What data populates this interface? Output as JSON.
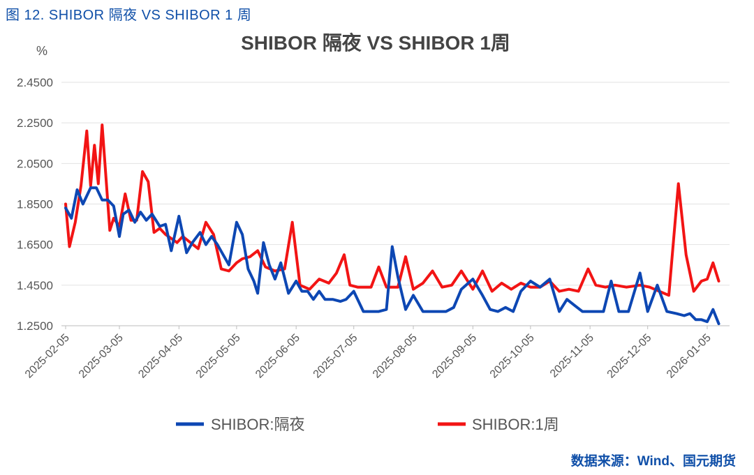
{
  "caption": "图 12. SHIBOR 隔夜 VS SHIBOR 1 周",
  "source": "数据来源：Wind、国元期货",
  "colors": {
    "overnight": "#0d47b3",
    "week": "#f21414",
    "grid": "#e2e2e2"
  },
  "chart_data": {
    "type": "line",
    "title": "SHIBOR 隔夜 VS SHIBOR 1周",
    "ylabel": "%",
    "xlabel": "",
    "ylim": [
      1.25,
      2.45
    ],
    "yticks": [
      "2.4500",
      "2.2500",
      "2.0500",
      "1.8500",
      "1.6500",
      "1.4500",
      "1.2500"
    ],
    "xticks": [
      "2025-02-05",
      "2025-03-05",
      "2025-04-05",
      "2025-05-05",
      "2025-06-05",
      "2025-07-05",
      "2025-08-05",
      "2025-09-05",
      "2025-10-05",
      "2025-11-05",
      "2025-12-05",
      "2026-01-05"
    ],
    "grid": true,
    "legend_position": "bottom",
    "series": [
      {
        "name": "SHIBOR:隔夜",
        "x": [
          "2025-02-05",
          "2025-02-08",
          "2025-02-11",
          "2025-02-14",
          "2025-02-18",
          "2025-02-21",
          "2025-02-24",
          "2025-02-27",
          "2025-03-02",
          "2025-03-05",
          "2025-03-07",
          "2025-03-10",
          "2025-03-13",
          "2025-03-16",
          "2025-03-19",
          "2025-03-22",
          "2025-03-26",
          "2025-03-29",
          "2025-04-01",
          "2025-04-05",
          "2025-04-09",
          "2025-04-12",
          "2025-04-16",
          "2025-04-19",
          "2025-04-22",
          "2025-04-25",
          "2025-04-28",
          "2025-05-01",
          "2025-05-05",
          "2025-05-08",
          "2025-05-11",
          "2025-05-14",
          "2025-05-16",
          "2025-05-19",
          "2025-05-22",
          "2025-05-25",
          "2025-05-28",
          "2025-06-01",
          "2025-06-05",
          "2025-06-08",
          "2025-06-11",
          "2025-06-14",
          "2025-06-17",
          "2025-06-20",
          "2025-06-24",
          "2025-06-28",
          "2025-07-01",
          "2025-07-05",
          "2025-07-10",
          "2025-07-14",
          "2025-07-18",
          "2025-07-22",
          "2025-07-25",
          "2025-07-28",
          "2025-08-01",
          "2025-08-05",
          "2025-08-10",
          "2025-08-15",
          "2025-08-19",
          "2025-08-22",
          "2025-08-26",
          "2025-08-30",
          "2025-09-05",
          "2025-09-10",
          "2025-09-14",
          "2025-09-18",
          "2025-09-22",
          "2025-09-26",
          "2025-09-30",
          "2025-10-05",
          "2025-10-10",
          "2025-10-15",
          "2025-10-20",
          "2025-10-24",
          "2025-10-28",
          "2025-11-01",
          "2025-11-05",
          "2025-11-08",
          "2025-11-12",
          "2025-11-16",
          "2025-11-20",
          "2025-11-25",
          "2025-12-01",
          "2025-12-05",
          "2025-12-10",
          "2025-12-15",
          "2025-12-20",
          "2025-12-24",
          "2025-12-27",
          "2025-12-30",
          "2026-01-02",
          "2026-01-05",
          "2026-01-08",
          "2026-01-11"
        ],
        "values": [
          1.83,
          1.78,
          1.92,
          1.85,
          1.93,
          1.93,
          1.87,
          1.87,
          1.84,
          1.69,
          1.8,
          1.82,
          1.76,
          1.81,
          1.77,
          1.8,
          1.74,
          1.75,
          1.62,
          1.79,
          1.61,
          1.66,
          1.71,
          1.65,
          1.69,
          1.65,
          1.6,
          1.55,
          1.76,
          1.7,
          1.53,
          1.47,
          1.41,
          1.66,
          1.55,
          1.48,
          1.56,
          1.41,
          1.47,
          1.42,
          1.42,
          1.38,
          1.42,
          1.38,
          1.38,
          1.37,
          1.38,
          1.42,
          1.32,
          1.32,
          1.32,
          1.33,
          1.64,
          1.49,
          1.33,
          1.4,
          1.32,
          1.32,
          1.32,
          1.32,
          1.34,
          1.43,
          1.48,
          1.4,
          1.33,
          1.32,
          1.34,
          1.32,
          1.42,
          1.47,
          1.44,
          1.48,
          1.32,
          1.38,
          1.35,
          1.32,
          1.32,
          1.32,
          1.32,
          1.47,
          1.32,
          1.32,
          1.51,
          1.32,
          1.45,
          1.32,
          1.31,
          1.3,
          1.31,
          1.28,
          1.28,
          1.27,
          1.33,
          1.26
        ]
      },
      {
        "name": "SHIBOR:1周",
        "x": [
          "2025-02-05",
          "2025-02-07",
          "2025-02-10",
          "2025-02-13",
          "2025-02-16",
          "2025-02-18",
          "2025-02-20",
          "2025-02-22",
          "2025-02-24",
          "2025-02-26",
          "2025-02-28",
          "2025-03-02",
          "2025-03-05",
          "2025-03-08",
          "2025-03-11",
          "2025-03-14",
          "2025-03-17",
          "2025-03-20",
          "2025-03-23",
          "2025-03-26",
          "2025-03-29",
          "2025-04-01",
          "2025-04-04",
          "2025-04-07",
          "2025-04-11",
          "2025-04-15",
          "2025-04-19",
          "2025-04-23",
          "2025-04-27",
          "2025-05-01",
          "2025-05-05",
          "2025-05-08",
          "2025-05-12",
          "2025-05-16",
          "2025-05-20",
          "2025-05-25",
          "2025-05-30",
          "2025-06-03",
          "2025-06-07",
          "2025-06-12",
          "2025-06-17",
          "2025-06-22",
          "2025-06-26",
          "2025-06-30",
          "2025-07-03",
          "2025-07-07",
          "2025-07-10",
          "2025-07-14",
          "2025-07-18",
          "2025-07-22",
          "2025-07-25",
          "2025-07-28",
          "2025-08-01",
          "2025-08-05",
          "2025-08-10",
          "2025-08-15",
          "2025-08-20",
          "2025-08-25",
          "2025-08-30",
          "2025-09-05",
          "2025-09-10",
          "2025-09-15",
          "2025-09-20",
          "2025-09-25",
          "2025-09-30",
          "2025-10-05",
          "2025-10-10",
          "2025-10-15",
          "2025-10-20",
          "2025-10-25",
          "2025-10-30",
          "2025-11-04",
          "2025-11-08",
          "2025-11-13",
          "2025-11-18",
          "2025-11-24",
          "2025-12-01",
          "2025-12-06",
          "2025-12-11",
          "2025-12-16",
          "2025-12-21",
          "2025-12-25",
          "2025-12-29",
          "2026-01-02",
          "2026-01-05",
          "2026-01-08",
          "2026-01-11"
        ],
        "values": [
          1.85,
          1.64,
          1.76,
          1.94,
          2.21,
          1.94,
          2.14,
          1.95,
          2.24,
          1.98,
          1.72,
          1.78,
          1.74,
          1.9,
          1.77,
          1.77,
          2.01,
          1.96,
          1.71,
          1.73,
          1.7,
          1.68,
          1.66,
          1.69,
          1.66,
          1.63,
          1.76,
          1.7,
          1.53,
          1.52,
          1.56,
          1.58,
          1.59,
          1.62,
          1.54,
          1.52,
          1.53,
          1.76,
          1.45,
          1.43,
          1.48,
          1.46,
          1.51,
          1.6,
          1.45,
          1.44,
          1.44,
          1.44,
          1.54,
          1.44,
          1.44,
          1.44,
          1.59,
          1.43,
          1.46,
          1.52,
          1.44,
          1.45,
          1.52,
          1.43,
          1.52,
          1.42,
          1.46,
          1.43,
          1.46,
          1.44,
          1.44,
          1.47,
          1.42,
          1.43,
          1.42,
          1.53,
          1.45,
          1.44,
          1.45,
          1.44,
          1.45,
          1.44,
          1.42,
          1.4,
          1.95,
          1.6,
          1.42,
          1.47,
          1.48,
          1.56,
          1.47
        ]
      }
    ]
  }
}
